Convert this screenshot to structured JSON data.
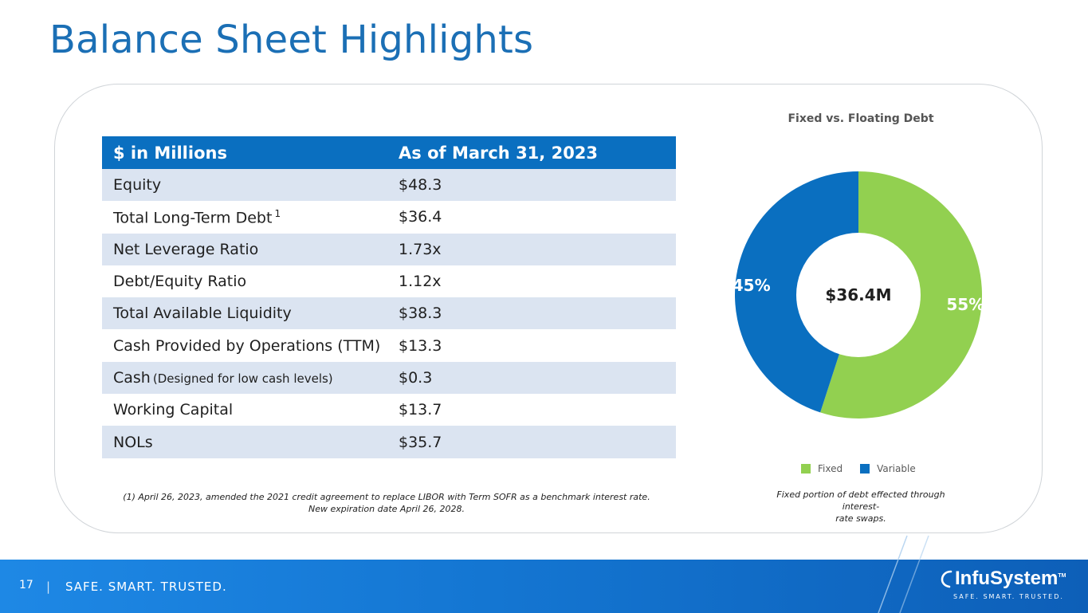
{
  "page": {
    "title": "Balance Sheet Highlights",
    "page_number": "17",
    "separator": "|",
    "tagline": "SAFE. SMART. TRUSTED."
  },
  "table": {
    "header": [
      "$ in Millions",
      "As of March 31, 2023"
    ],
    "rows": [
      {
        "label": "Equity",
        "value": "$48.3"
      },
      {
        "label": "Total Long-Term Debt",
        "sup": "1",
        "value": "$36.4"
      },
      {
        "label": "Net Leverage Ratio",
        "value": "1.73x"
      },
      {
        "label": "Debt/Equity Ratio",
        "value": "1.12x"
      },
      {
        "label": "Total Available Liquidity",
        "value": "$38.3"
      },
      {
        "label": "Cash Provided by Operations (TTM)",
        "value": "$13.3"
      },
      {
        "label": "Cash",
        "note": "(Designed for low cash levels)",
        "value": "$0.3"
      },
      {
        "label": "Working Capital",
        "value": "$13.7"
      },
      {
        "label": "NOLs",
        "value": "$35.7"
      }
    ],
    "footnote_line1": "(1) April 26, 2023, amended the 2021 credit agreement to replace LIBOR with Term SOFR as a benchmark interest rate.",
    "footnote_line2": "New expiration date April 26, 2028."
  },
  "chart_data": {
    "type": "pie",
    "title": "Fixed vs. Floating Debt",
    "center_label": "$36.4M",
    "categories": [
      "Fixed",
      "Variable"
    ],
    "values": [
      55,
      45
    ],
    "value_labels": [
      "55%",
      "45%"
    ],
    "colors": [
      "#92d050",
      "#0a6fc0"
    ],
    "legend_position": "bottom",
    "footnote_line1": "Fixed portion of debt effected through interest-",
    "footnote_line2": "rate swaps."
  },
  "logo": {
    "name": "InfuSystem",
    "tagline": "SAFE. SMART. TRUSTED.",
    "trademark": "TM"
  },
  "colors": {
    "title": "#1b6fb5",
    "header": "#0a6fc0",
    "shade": "#dbe4f1",
    "fixed": "#92d050",
    "variable": "#0a6fc0"
  }
}
